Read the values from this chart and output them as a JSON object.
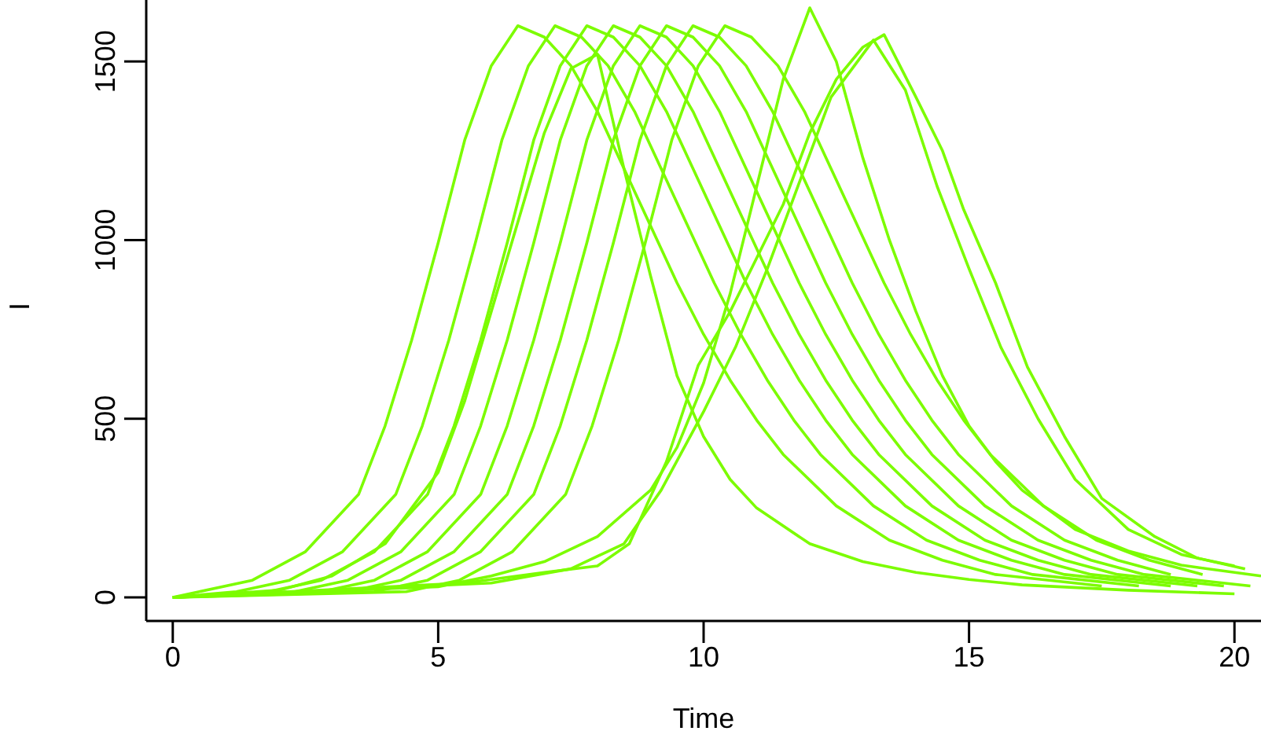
{
  "chart_data": {
    "type": "line",
    "xlabel": "Time",
    "ylabel": "I",
    "xlim": [
      -0.5,
      20.5
    ],
    "ylim": [
      -66,
      1672
    ],
    "xticks": [
      0,
      5,
      10,
      15,
      20
    ],
    "yticks": [
      0,
      500,
      1000,
      1500
    ],
    "grid": false,
    "legend": false,
    "marker": "none",
    "line_style": "solid",
    "series": [
      {
        "color": "#7cfc00",
        "x": [
          0,
          0.5,
          1.5,
          2.5,
          3.5,
          4,
          4.5,
          5,
          5.5,
          6,
          6.5,
          7,
          7.5,
          8,
          8.5,
          9,
          9.5,
          10,
          10.5,
          11,
          11.5,
          12.5,
          13.5,
          14.5,
          15.5,
          17.5
        ],
        "values": [
          0,
          16,
          48,
          128,
          288,
          480,
          720,
          992,
          1280,
          1488,
          1600,
          1568,
          1488,
          1360,
          1200,
          1040,
          880,
          736,
          608,
          496,
          400,
          256,
          160,
          104,
          64,
          32
        ]
      },
      {
        "color": "#7cfc00",
        "x": [
          0,
          1.2,
          2.2,
          3.2,
          4.2,
          4.7,
          5.2,
          5.7,
          6.2,
          6.7,
          7.2,
          7.7,
          8.2,
          8.7,
          9.2,
          9.7,
          10.2,
          10.7,
          11.2,
          11.7,
          12.2,
          13.2,
          14.2,
          15.2,
          16.2,
          18.2
        ],
        "values": [
          0,
          16,
          48,
          128,
          288,
          480,
          720,
          992,
          1280,
          1488,
          1600,
          1568,
          1488,
          1360,
          1200,
          1040,
          880,
          736,
          608,
          496,
          400,
          256,
          160,
          104,
          64,
          32
        ]
      },
      {
        "color": "#7cfc00",
        "x": [
          0,
          1.8,
          2.8,
          3.8,
          4.8,
          5.3,
          5.8,
          6.3,
          6.8,
          7.3,
          7.8,
          8.3,
          8.8,
          9.3,
          9.8,
          10.3,
          10.8,
          11.3,
          11.8,
          12.3,
          12.8,
          13.8,
          14.8,
          15.8,
          16.8,
          18.8
        ],
        "values": [
          0,
          16,
          48,
          128,
          288,
          480,
          720,
          992,
          1280,
          1488,
          1600,
          1568,
          1488,
          1360,
          1200,
          1040,
          880,
          736,
          608,
          496,
          400,
          256,
          160,
          104,
          64,
          32
        ]
      },
      {
        "color": "#7cfc00",
        "x": [
          0,
          2.3,
          3.3,
          4.3,
          5.3,
          5.8,
          6.3,
          6.8,
          7.3,
          7.8,
          8.3,
          8.8,
          9.3,
          9.8,
          10.3,
          10.8,
          11.3,
          11.8,
          12.3,
          12.8,
          13.3,
          14.3,
          15.3,
          16.3,
          17.3,
          19.3
        ],
        "values": [
          0,
          16,
          48,
          128,
          288,
          480,
          720,
          992,
          1280,
          1488,
          1600,
          1568,
          1488,
          1360,
          1200,
          1040,
          880,
          736,
          608,
          496,
          400,
          256,
          160,
          104,
          64,
          32
        ]
      },
      {
        "color": "#7cfc00",
        "x": [
          0,
          2.8,
          3.8,
          4.8,
          5.8,
          6.3,
          6.8,
          7.3,
          7.8,
          8.3,
          8.8,
          9.3,
          9.8,
          10.3,
          10.8,
          11.3,
          11.8,
          12.3,
          12.8,
          13.3,
          13.8,
          14.8,
          15.8,
          16.8,
          17.8,
          19.8
        ],
        "values": [
          0,
          16,
          48,
          128,
          288,
          480,
          720,
          992,
          1280,
          1488,
          1600,
          1568,
          1488,
          1360,
          1200,
          1040,
          880,
          736,
          608,
          496,
          400,
          256,
          160,
          104,
          64,
          32
        ]
      },
      {
        "color": "#7cfc00",
        "x": [
          0,
          3.3,
          4.3,
          5.3,
          6.3,
          6.8,
          7.3,
          7.8,
          8.3,
          8.8,
          9.3,
          9.8,
          10.3,
          10.8,
          11.3,
          11.8,
          12.3,
          12.8,
          13.3,
          13.8,
          14.3,
          15.3,
          16.3,
          17.3,
          18.3,
          20.3
        ],
        "values": [
          0,
          16,
          48,
          128,
          288,
          480,
          720,
          992,
          1280,
          1488,
          1600,
          1568,
          1488,
          1360,
          1200,
          1040,
          880,
          736,
          608,
          496,
          400,
          256,
          160,
          104,
          64,
          32
        ]
      },
      {
        "color": "#7cfc00",
        "x": [
          0,
          3.8,
          4.8,
          5.8,
          6.8,
          7.3,
          7.8,
          8.3,
          8.8,
          9.3,
          9.8,
          10.3,
          10.8,
          11.3,
          11.8,
          12.3,
          12.8,
          13.3,
          13.8,
          14.3,
          14.8,
          15.8,
          16.8,
          17.8,
          18.8
        ],
        "values": [
          0,
          16,
          48,
          128,
          288,
          480,
          720,
          992,
          1280,
          1488,
          1600,
          1568,
          1488,
          1360,
          1200,
          1040,
          880,
          736,
          608,
          496,
          400,
          256,
          160,
          104,
          64
        ]
      },
      {
        "color": "#7cfc00",
        "x": [
          0,
          4.4,
          5.4,
          6.4,
          7.4,
          7.9,
          8.4,
          8.9,
          9.4,
          9.9,
          10.4,
          10.9,
          11.4,
          11.9,
          12.4,
          12.9,
          13.4,
          13.9,
          14.4,
          14.9,
          15.4,
          16.4,
          17.4,
          18.4,
          19.4
        ],
        "values": [
          0,
          16,
          48,
          128,
          288,
          480,
          720,
          992,
          1280,
          1488,
          1600,
          1568,
          1488,
          1360,
          1200,
          1040,
          880,
          736,
          608,
          496,
          400,
          256,
          160,
          104,
          64
        ]
      },
      {
        "color": "#7cfc00",
        "x": [
          0,
          2,
          3,
          4,
          5,
          5.5,
          6,
          6.5,
          7,
          7.5,
          8,
          8.5,
          9,
          9.5,
          10,
          10.5,
          11,
          12,
          13,
          14,
          15,
          16,
          18,
          20
        ],
        "values": [
          0,
          20,
          60,
          150,
          350,
          550,
          800,
          1050,
          1300,
          1480,
          1520,
          1200,
          900,
          620,
          450,
          330,
          250,
          150,
          100,
          70,
          50,
          35,
          20,
          10
        ]
      },
      {
        "color": "#7cfc00",
        "x": [
          0,
          5,
          6,
          7,
          8,
          9,
          9.5,
          10,
          10.5,
          11,
          11.5,
          12,
          12.5,
          13,
          13.5,
          14,
          14.5,
          15,
          15.5,
          16,
          17,
          18,
          19,
          20.5
        ],
        "values": [
          0,
          30,
          60,
          100,
          170,
          300,
          420,
          600,
          850,
          1150,
          1450,
          1650,
          1500,
          1230,
          1000,
          800,
          620,
          480,
          380,
          300,
          190,
          130,
          90,
          60
        ]
      },
      {
        "color": "#7cfc00",
        "x": [
          0,
          5.5,
          7,
          8,
          8.6,
          9.3,
          9.9,
          10.5,
          11,
          11.5,
          12,
          12.5,
          13,
          13.4,
          14,
          14.5,
          14.9,
          15.5,
          16.1,
          16.8,
          17.5,
          18.5,
          19.3,
          20
        ],
        "values": [
          0,
          40,
          70,
          88,
          150,
          380,
          650,
          800,
          950,
          1100,
          1300,
          1450,
          1540,
          1575,
          1400,
          1250,
          1085,
          880,
          645,
          450,
          277,
          170,
          110,
          88
        ]
      },
      {
        "color": "#7cfc00",
        "x": [
          0,
          6,
          7.5,
          8.5,
          9.2,
          10,
          10.6,
          11.2,
          11.8,
          12.4,
          13.2,
          13.8,
          14.4,
          15,
          15.6,
          16.3,
          17,
          18,
          19,
          20.2
        ],
        "values": [
          0,
          40,
          80,
          150,
          300,
          520,
          700,
          920,
          1160,
          1400,
          1560,
          1420,
          1150,
          920,
          700,
          500,
          330,
          190,
          120,
          80
        ]
      }
    ]
  }
}
